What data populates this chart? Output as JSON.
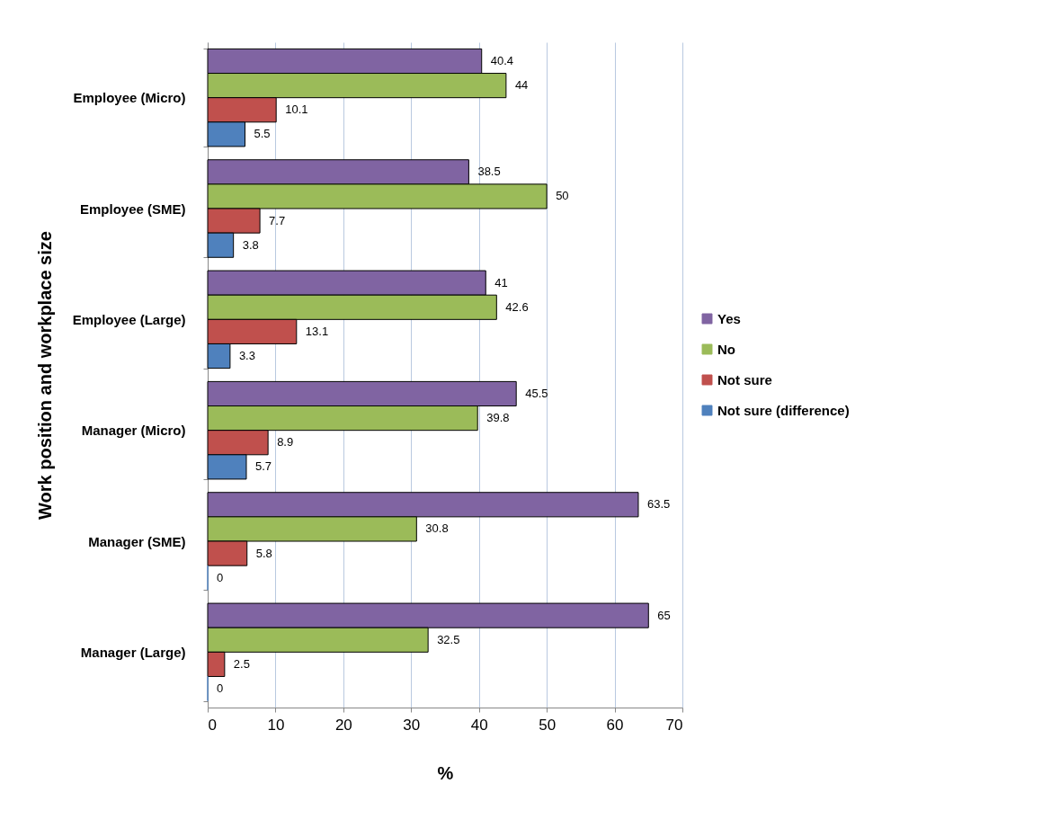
{
  "chart_data": {
    "type": "bar",
    "orientation": "horizontal",
    "xlabel": "%",
    "ylabel": "Work position and workplace size",
    "categories": [
      "Employee (Micro)",
      "Employee (SME)",
      "Employee (Large)",
      "Manager (Micro)",
      "Manager (SME)",
      "Manager (Large)"
    ],
    "series": [
      {
        "name": "Yes",
        "color": "#8064a2",
        "values": [
          40.4,
          38.5,
          41,
          45.5,
          63.5,
          65
        ]
      },
      {
        "name": "No",
        "color": "#9bbb59",
        "values": [
          44,
          50,
          42.6,
          39.8,
          30.8,
          32.5
        ]
      },
      {
        "name": "Not sure",
        "color": "#c0504d",
        "values": [
          10.1,
          7.7,
          13.1,
          8.9,
          5.8,
          2.5
        ]
      },
      {
        "name": "Not sure (difference)",
        "color": "#4f81bd",
        "values": [
          5.5,
          3.8,
          3.3,
          5.7,
          0,
          0
        ]
      }
    ],
    "xlim": [
      0,
      70
    ],
    "xticks": [
      0,
      10,
      20,
      30,
      40,
      50,
      60,
      70
    ],
    "grid": "x",
    "legend": "right",
    "data_labels": true
  }
}
